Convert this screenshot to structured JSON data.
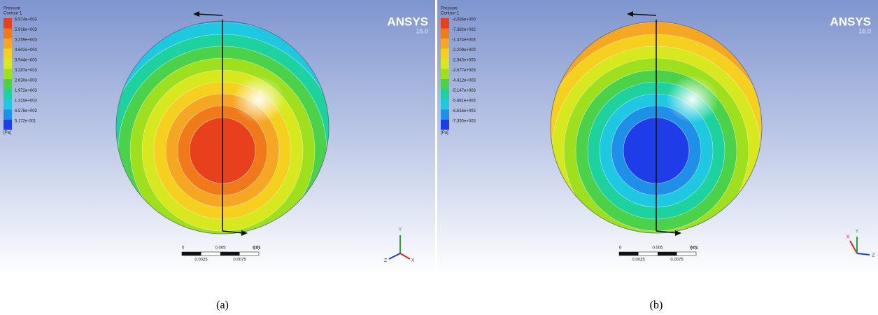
{
  "panels": [
    {
      "legend": {
        "title": "Pressure",
        "subtitle": "Contour 1",
        "labels": [
          "6.574e+003",
          "5.916e+003",
          "5.259e+003",
          "4.602e+003",
          "3.944e+003",
          "3.287e+003",
          "2.630e+003",
          "1.972e+003",
          "1.315e+003",
          "6.578e+002",
          "5.172e-001"
        ],
        "unit": "[Pa]"
      },
      "logo": {
        "name": "ANSYS",
        "version": "16.0"
      },
      "scale": {
        "top": [
          "0",
          "0.005",
          "0.01"
        ],
        "unit": "(m)",
        "bottom": [
          "0.0025",
          "0.0075"
        ]
      },
      "triad": [
        "Y",
        "Z",
        "X"
      ],
      "caption": "(a)"
    },
    {
      "legend": {
        "title": "Pressure",
        "subtitle": "Contour 1",
        "labels": [
          "-4.586e+000",
          "-7.382e+002",
          "-1.474e+003",
          "-2.209e+003",
          "-2.943e+003",
          "-3.677e+003",
          "-4.412e+003",
          "-5.147e+003",
          "-5.881e+003",
          "-6.616e+003",
          "-7.350e+003"
        ],
        "unit": "[Pa]"
      },
      "logo": {
        "name": "ANSYS",
        "version": "16.0"
      },
      "scale": {
        "top": [
          "0",
          "0.005",
          "0.01"
        ],
        "unit": "(m)",
        "bottom": [
          "0.0025",
          "0.0075"
        ]
      },
      "triad": [
        "X",
        "Y",
        "Z"
      ],
      "caption": "(b)"
    }
  ]
}
